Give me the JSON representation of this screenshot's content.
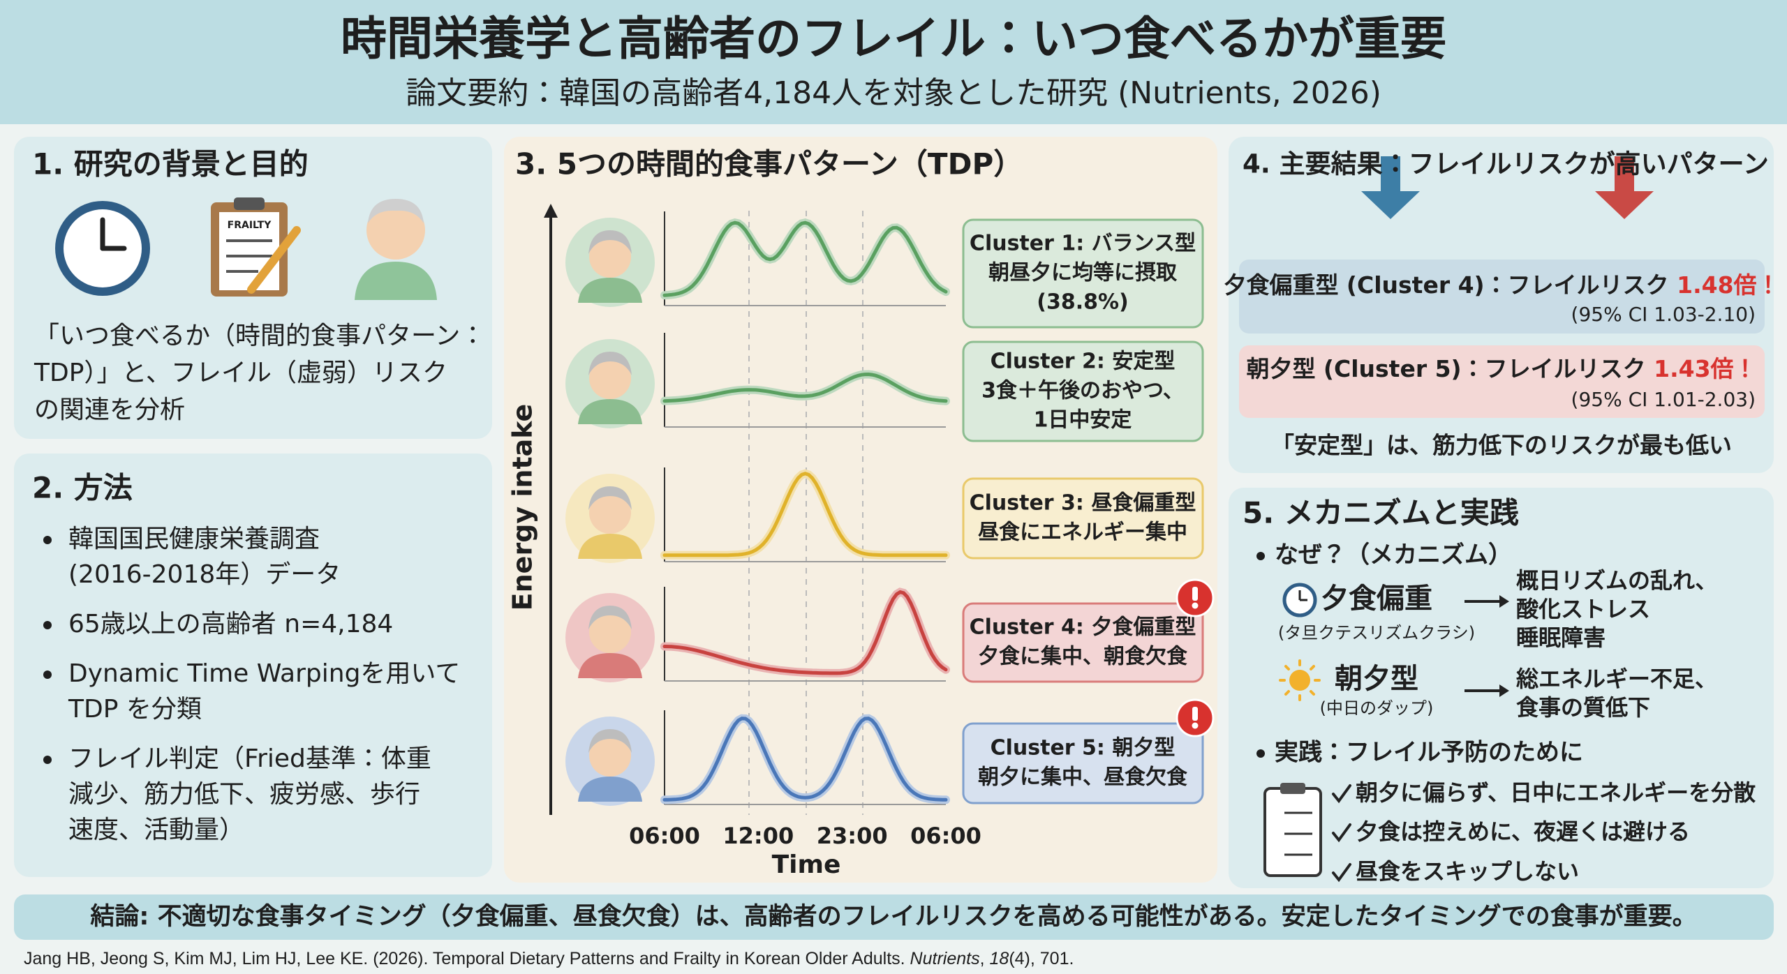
{
  "header": {
    "title": "時間栄養学と高齢者のフレイル：いつ食べるかが重要",
    "subtitle": "論文要約：韓国の高齢者4,184人を対象とした研究 (Nutrients, 2026)"
  },
  "background": {
    "heading": "1. 研究の背景と目的",
    "icon_label": "FRAILTY",
    "lines": [
      "「いつ食べるか（時間的食事パターン：",
      "TDP）」と、フレイル（虚弱）リスク",
      "の関連を分析"
    ]
  },
  "methods": {
    "heading": "2. 方法",
    "bullets": [
      [
        "韓国国民健康栄養調査",
        "(2016-2018年）データ"
      ],
      [
        "65歳以上の高齢者 n=4,184"
      ],
      [
        "Dynamic Time Warpingを用いて",
        "TDP を分類"
      ],
      [
        "フレイル判定（Fried基準：体重",
        "減少、筋力低下、疲労感、歩行",
        "速度、活動量）"
      ]
    ]
  },
  "patterns": {
    "heading": "3. 5つの時間的食事パターン（TDP）",
    "y_label": "Energy intake",
    "x_label": "Time",
    "x_ticks": [
      "06:00",
      "12:00",
      "23:00",
      "06:00"
    ],
    "clusters": [
      {
        "lines": [
          "Cluster 1: バランス型",
          "朝昼夕に均等に摂取",
          "(38.8%)"
        ],
        "color": "#5aa060"
      },
      {
        "lines": [
          "Cluster 2: 安定型",
          "3食＋午後のおやつ、",
          "1日中安定"
        ],
        "color": "#5aa060"
      },
      {
        "lines": [
          "Cluster 3: 昼食偏重型",
          "昼食にエネルギー集中"
        ],
        "color": "#e0b22a"
      },
      {
        "lines": [
          "Cluster 4: 夕食偏重型",
          "夕食に集中、朝食欠食"
        ],
        "color": "#c8423f"
      },
      {
        "lines": [
          "Cluster 5: 朝夕型",
          "朝夕に集中、昼食欠食"
        ],
        "color": "#4a77b8"
      }
    ]
  },
  "results": {
    "heading": "4. 主要結果：フレイルリスクが高いパターン",
    "items": [
      {
        "label": "夕食偏重型 (Cluster 4)：フレイルリスク ",
        "value": "1.48倍！",
        "ci": "(95% CI 1.03-2.10)"
      },
      {
        "label": "朝夕型 (Cluster 5)：フレイルリスク ",
        "value": "1.43倍！",
        "ci": "(95% CI 1.01-2.03)"
      }
    ],
    "note": "「安定型」は、筋力低下のリスクが最も低い"
  },
  "mechanism": {
    "heading": "5. メカニズムと実践",
    "why": "なぜ？（メカニズム）",
    "items": [
      {
        "name": "夕食偏重",
        "sub": "(タ旦クテスリズムクラシ)",
        "effects": [
          "概日リズムの乱れ、",
          "酸化ストレス",
          "睡眠障害"
        ]
      },
      {
        "name": "朝夕型",
        "sub": "(中日のダップ)",
        "effects": [
          "総エネルギー不足、",
          "食事の質低下"
        ]
      }
    ],
    "practice": "実践：フレイル予防のために",
    "actions": [
      "朝夕に偏らず、日中にエネルギーを分散",
      "夕食は控えめに、夜遅くは避ける",
      "昼食をスキップしない"
    ]
  },
  "conclusion": "結論: 不適切な食事タイミング（夕食偏重、昼食欠食）は、高齢者のフレイルリスクを高める可能性がある。安定したタイミングでの食事が重要。",
  "citation": {
    "authors": "Jang HB, Jeong S, Kim MJ, Lim HJ, Lee KE. (2026). Temporal Dietary Patterns and Frailty in Korean Older Adults. ",
    "journal": "Nutrients",
    "sep": ", ",
    "volume": "18",
    "rest": "(4), 701."
  }
}
